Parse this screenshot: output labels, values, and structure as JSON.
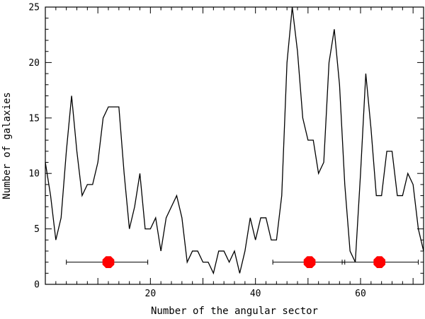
{
  "chart_data": {
    "type": "line",
    "title": "",
    "xlabel": "Number of the angular sector",
    "ylabel": "Number of galaxies",
    "xlim": [
      0,
      72
    ],
    "ylim": [
      0,
      25
    ],
    "x_ticks": [
      20,
      40,
      60
    ],
    "y_ticks": [
      0,
      5,
      10,
      15,
      20,
      25
    ],
    "grid": false,
    "legend": "none",
    "series": [
      {
        "x": [
          0,
          1,
          2,
          3,
          4,
          5,
          6,
          7,
          8,
          9,
          10,
          11,
          12,
          13,
          14,
          15,
          16,
          17,
          18,
          19,
          20,
          21,
          22,
          23,
          24,
          25,
          26,
          27,
          28,
          29,
          30,
          31,
          32,
          33,
          34,
          35,
          36,
          37,
          38,
          39,
          40,
          41,
          42,
          43,
          44,
          45,
          46,
          47,
          48,
          49,
          50,
          51,
          52,
          53,
          54,
          55,
          56,
          57,
          58,
          59,
          60,
          61,
          62,
          63,
          64,
          65,
          66,
          67,
          68,
          69,
          70,
          71,
          72
        ],
        "values": [
          11,
          8,
          4,
          6,
          12,
          17,
          12,
          8,
          9,
          9,
          11,
          15,
          16,
          16,
          16,
          10,
          5,
          7,
          10,
          5,
          5,
          6,
          3,
          6,
          7,
          8,
          6,
          2,
          3,
          3,
          2,
          2,
          1,
          3,
          3,
          2,
          3,
          1,
          3,
          6,
          4,
          6,
          6,
          4,
          4,
          8,
          20,
          25,
          21,
          15,
          13,
          13,
          10,
          11,
          20,
          23,
          18,
          9,
          3,
          2,
          10,
          19,
          14,
          8,
          8,
          12,
          12,
          8,
          8,
          10,
          9,
          5,
          3
        ]
      }
    ],
    "markers": [
      {
        "x": 12,
        "y": 2,
        "xerr_low": 4,
        "xerr_high": 19.5
      },
      {
        "x": 50.3,
        "y": 2,
        "xerr_low": 43.3,
        "xerr_high": 57
      },
      {
        "x": 63.6,
        "y": 2,
        "xerr_low": 56.5,
        "xerr_high": 71
      },
      {
        "color": "#ff0000"
      }
    ],
    "line_color": "#000000",
    "marker_color": "#ff0000"
  }
}
